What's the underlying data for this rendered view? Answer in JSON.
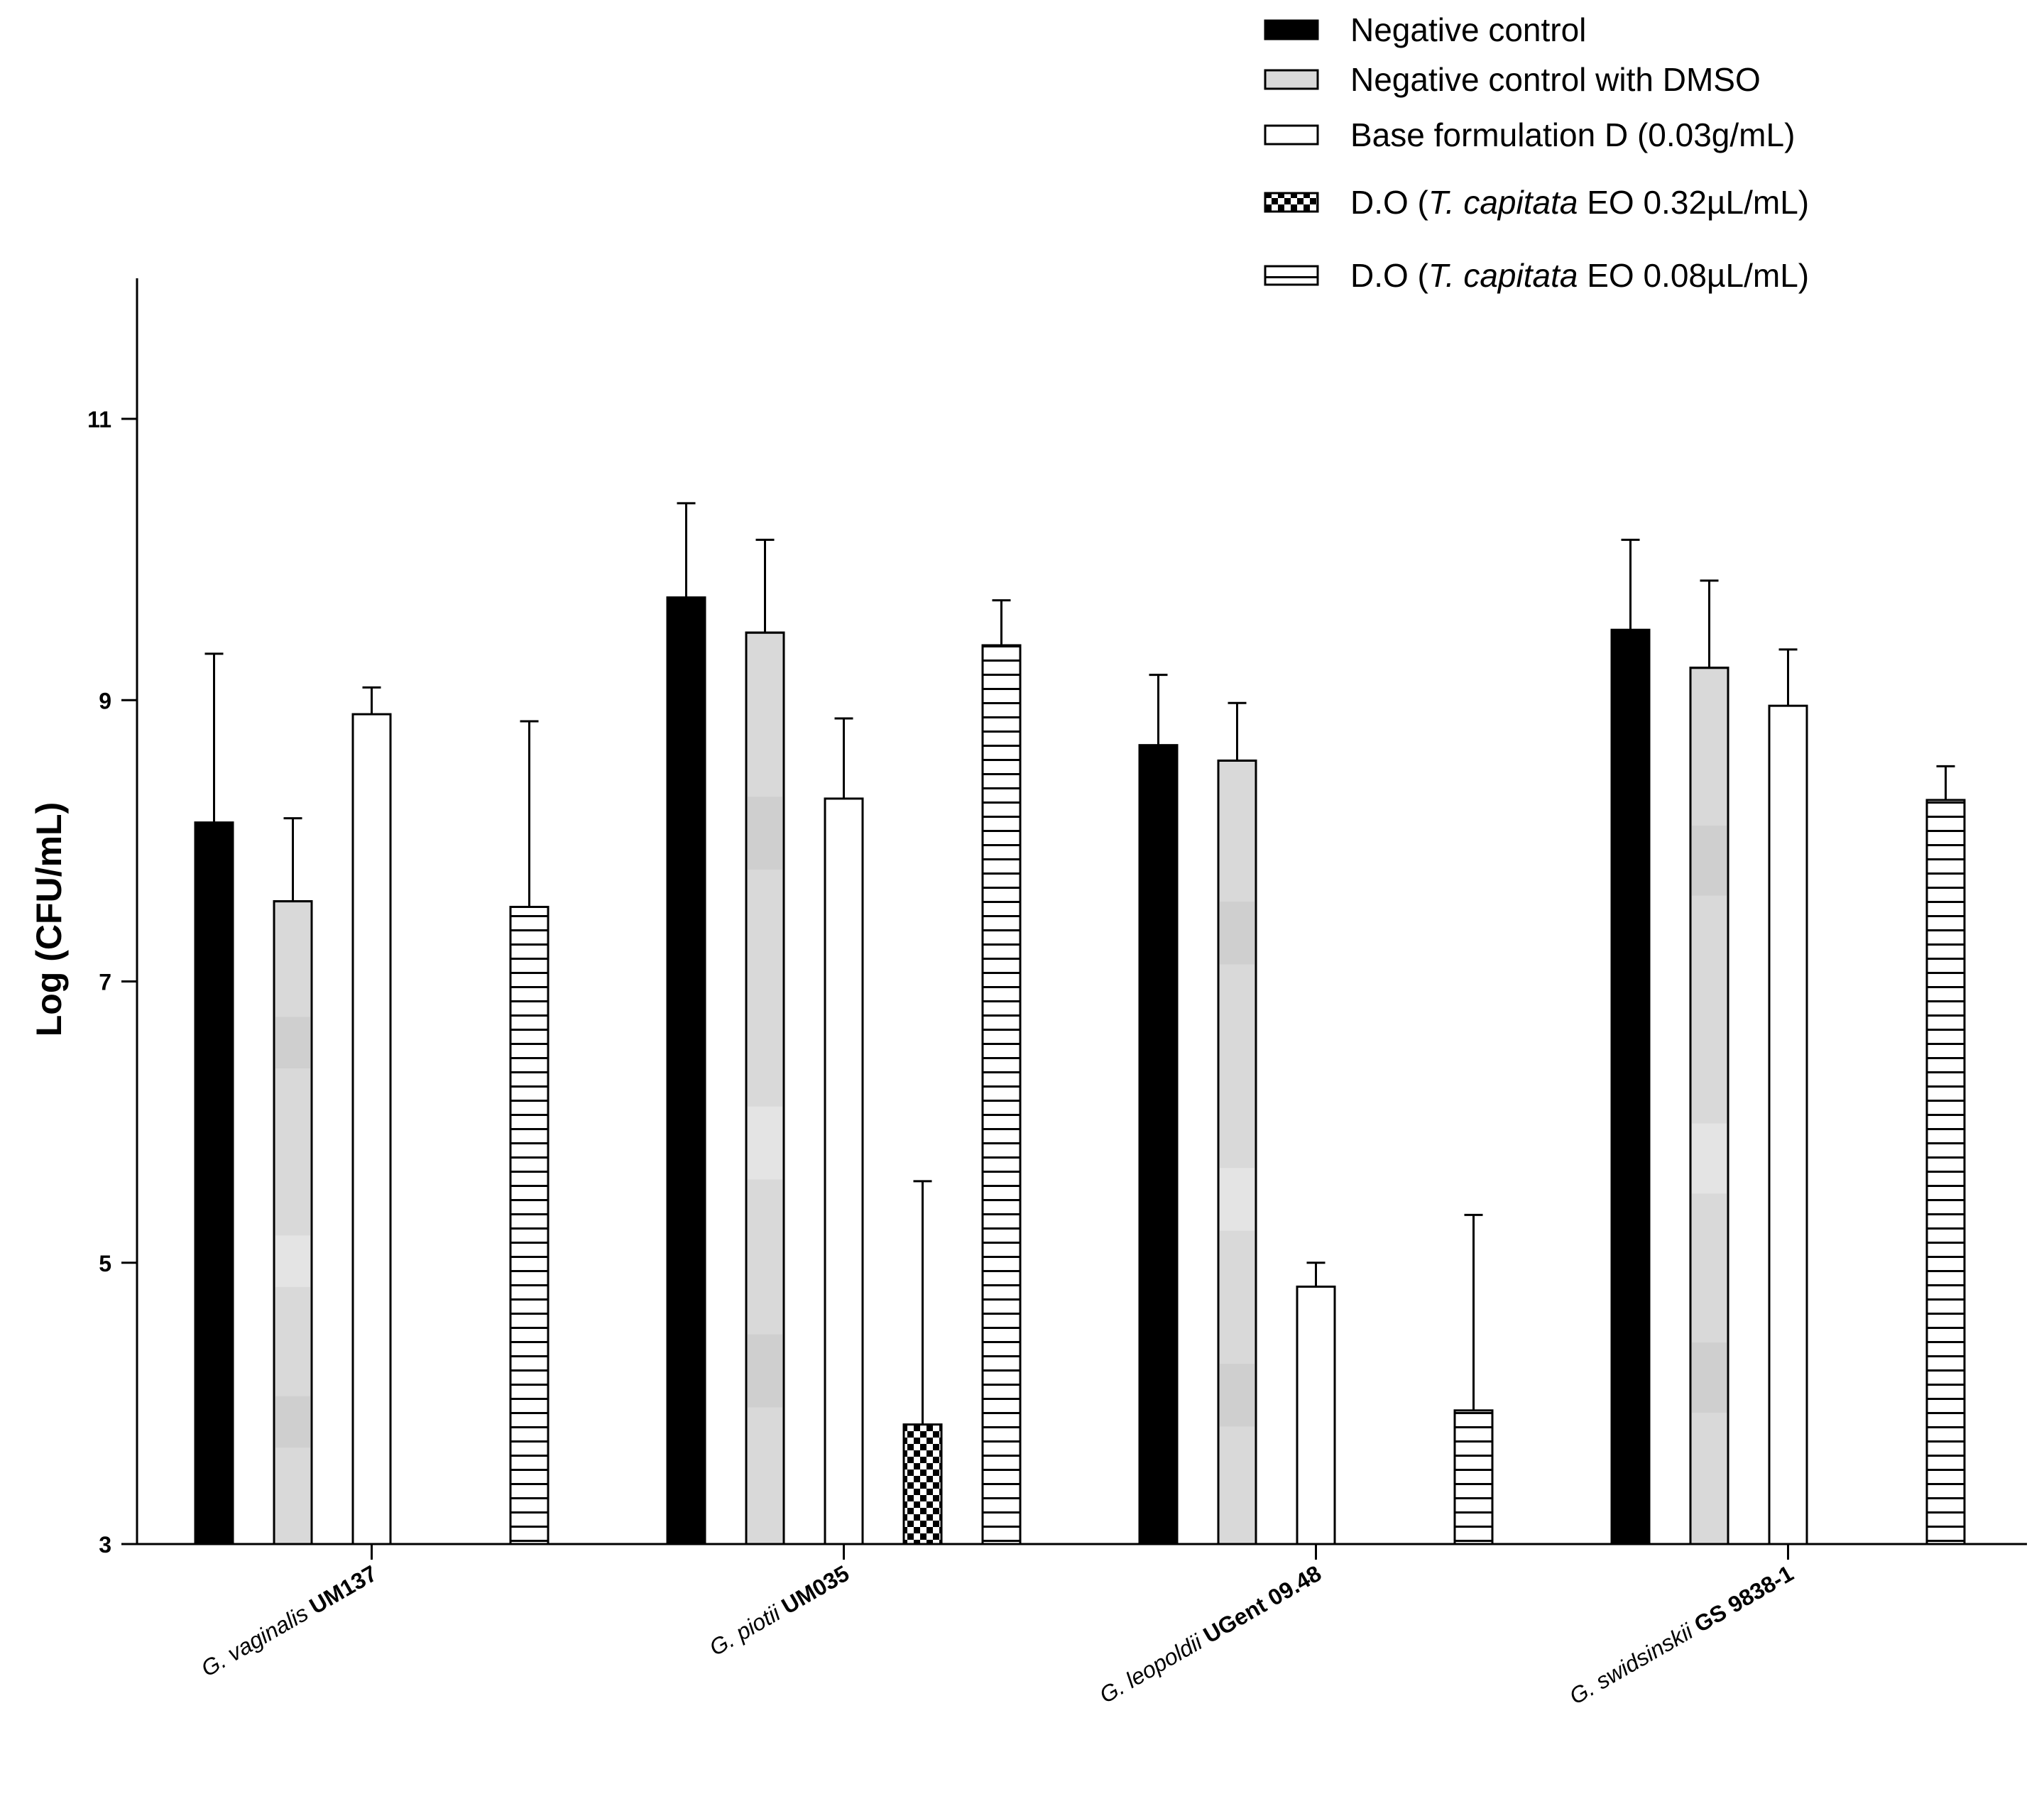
{
  "chart_data": {
    "type": "bar",
    "ylabel": "Log (CFU/mL)",
    "ylim": [
      3,
      12
    ],
    "yticks": [
      "3",
      "5",
      "7",
      "9",
      "11"
    ],
    "categories": [
      {
        "italic": "G. vaginalis",
        "bold": "UM137"
      },
      {
        "italic": "G. piotii",
        "bold": "UM035"
      },
      {
        "italic": "G. leopoldii",
        "bold": "UGent 09.48"
      },
      {
        "italic": "G. swidsinskii",
        "bold": "GS 9838-1"
      }
    ],
    "series": [
      {
        "name": "Negative control",
        "pattern": "solid-black",
        "values": [
          8.13,
          9.73,
          8.68,
          9.5
        ],
        "errors": [
          1.2,
          0.67,
          0.5,
          0.64
        ]
      },
      {
        "name": "Negative control with DMSO",
        "pattern": "gray",
        "values": [
          7.57,
          9.48,
          8.57,
          9.23
        ],
        "errors": [
          0.59,
          0.66,
          0.41,
          0.62
        ]
      },
      {
        "name": "Base formulation D (0.03g/mL)",
        "pattern": "white",
        "values": [
          8.9,
          8.3,
          4.83,
          8.96
        ],
        "errors": [
          0.19,
          0.57,
          0.17,
          0.4
        ]
      },
      {
        "name": "D.O (T. capitata EO 0.32µL/mL)",
        "pattern": "checker",
        "values": [
          null,
          3.85,
          null,
          null
        ],
        "errors": [
          null,
          1.73,
          null,
          null
        ]
      },
      {
        "name": "D.O (T. capitata EO 0.08µL/mL)",
        "pattern": "hstripe",
        "values": [
          7.53,
          9.39,
          3.95,
          8.29
        ],
        "errors": [
          1.32,
          0.32,
          1.39,
          0.24
        ]
      }
    ],
    "legend": [
      {
        "pattern": "solid-black",
        "parts": [
          {
            "t": "Negative control"
          }
        ]
      },
      {
        "pattern": "gray",
        "parts": [
          {
            "t": "Negative control with DMSO"
          }
        ]
      },
      {
        "pattern": "white",
        "parts": [
          {
            "t": "Base formulation D (0.03g/mL)"
          }
        ]
      },
      {
        "pattern": "checker",
        "parts": [
          {
            "t": "D.O ("
          },
          {
            "t": "T. capitata",
            "i": true
          },
          {
            "t": " EO 0.32µL/mL)"
          }
        ]
      },
      {
        "pattern": "hstripe",
        "parts": [
          {
            "t": "D.O ("
          },
          {
            "t": "T. capitata",
            "i": true
          },
          {
            "t": " EO 0.08µL/mL)"
          }
        ]
      }
    ],
    "legend_position": "top-right"
  }
}
